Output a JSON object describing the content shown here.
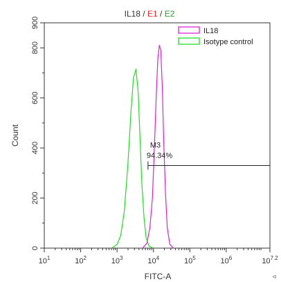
{
  "chart_data": {
    "type": "line",
    "title_parts": [
      {
        "text": "IL18",
        "color": "#333333"
      },
      {
        "text": " / ",
        "color": "#333333"
      },
      {
        "text": "E1",
        "color": "#e03030"
      },
      {
        "text": " / ",
        "color": "#333333"
      },
      {
        "text": "E2",
        "color": "#2a9d2a"
      }
    ],
    "xlabel": "FITC-A",
    "ylabel": "Count",
    "x_scale": "log",
    "xlim_exp": [
      1,
      7.2
    ],
    "ylim": [
      0,
      900
    ],
    "x_ticks": [
      {
        "base": "10",
        "exp": "1",
        "value": 1
      },
      {
        "base": "10",
        "exp": "2",
        "value": 2
      },
      {
        "base": "10",
        "exp": "3",
        "value": 3
      },
      {
        "base": "10",
        "exp": "4",
        "value": 4
      },
      {
        "base": "10",
        "exp": "5",
        "value": 5
      },
      {
        "base": "10",
        "exp": "6",
        "value": 6
      },
      {
        "base": "10",
        "exp": "7.2",
        "value": 7.2
      }
    ],
    "y_ticks": [
      "0",
      "200",
      "400",
      "600",
      "800",
      "900"
    ],
    "legend": [
      {
        "name": "IL18",
        "color": "#dd22dd"
      },
      {
        "name": "Isotype control",
        "color": "#22dd22"
      }
    ],
    "legend_position": "top-right",
    "series": [
      {
        "name": "IL18",
        "color": "#dd22dd",
        "log_x": [
          3.7,
          3.82,
          3.9,
          3.97,
          4.03,
          4.08,
          4.12,
          4.16,
          4.2,
          4.24,
          4.28,
          4.33,
          4.38,
          4.45,
          4.55
        ],
        "count": [
          0,
          20,
          80,
          200,
          420,
          620,
          760,
          810,
          790,
          650,
          430,
          220,
          80,
          15,
          0
        ]
      },
      {
        "name": "Isotype control",
        "color": "#22dd22",
        "log_x": [
          2.85,
          3.0,
          3.1,
          3.2,
          3.3,
          3.38,
          3.45,
          3.52,
          3.58,
          3.63,
          3.68,
          3.74,
          3.8,
          3.88,
          4.0
        ],
        "count": [
          0,
          15,
          50,
          150,
          340,
          540,
          680,
          715,
          620,
          440,
          260,
          120,
          40,
          8,
          0
        ]
      }
    ],
    "gate": {
      "name": "M3",
      "percent": "94.34%",
      "start_log": 3.85,
      "end_log": 7.2,
      "count_level": 330
    },
    "corner_glyph": "◃"
  }
}
